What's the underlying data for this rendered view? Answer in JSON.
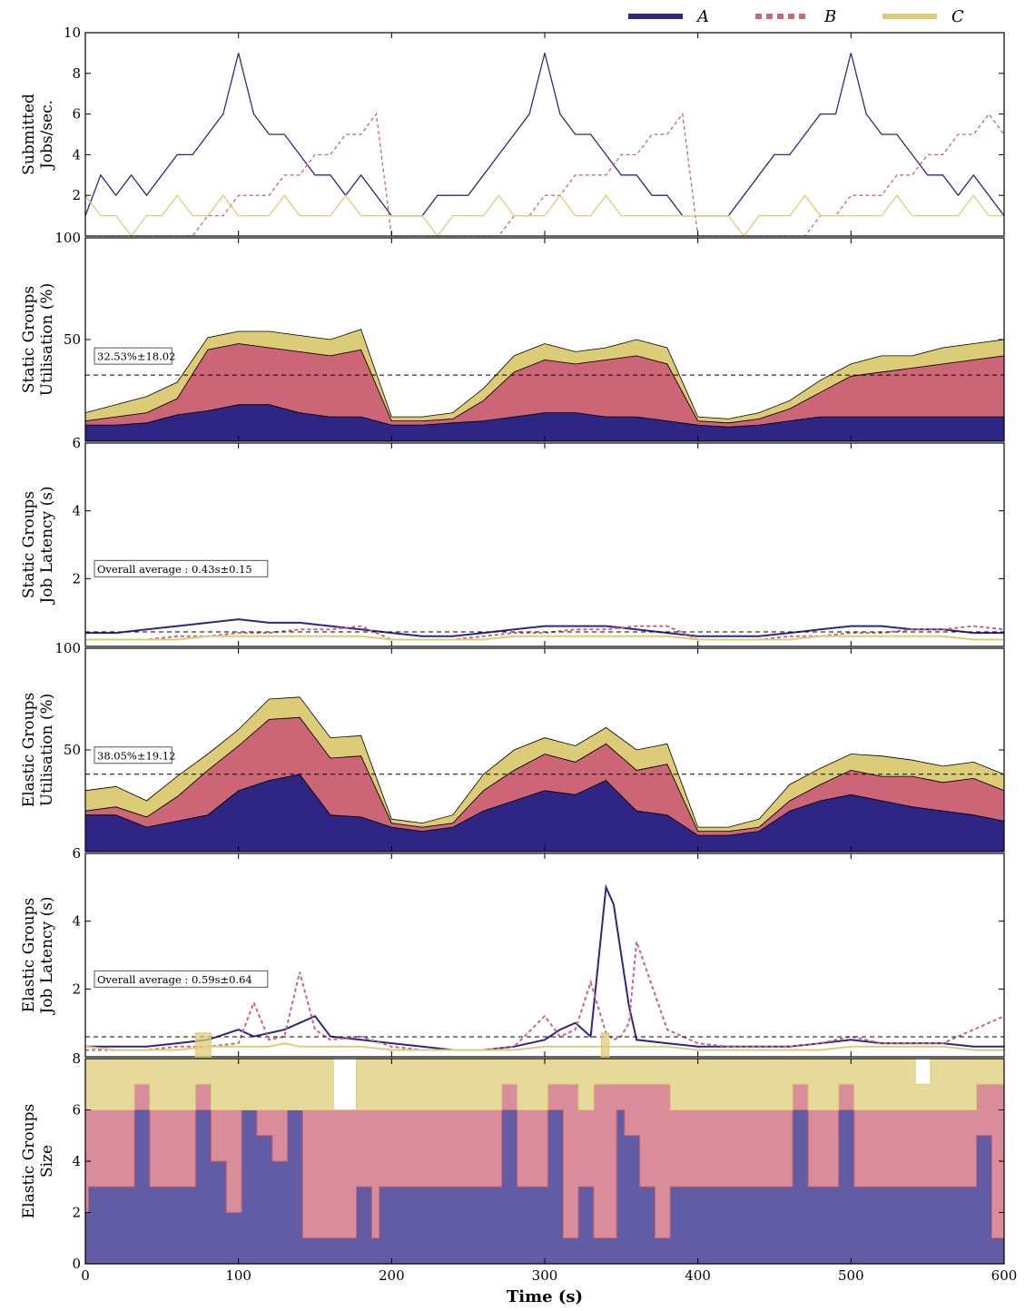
{
  "colors": {
    "A": "#2e2585",
    "B": "#cc6677",
    "C": "#ddcc77"
  },
  "legend": [
    {
      "key": "A",
      "label": "A",
      "dash": false
    },
    {
      "key": "B",
      "label": "B",
      "dash": true
    },
    {
      "key": "C",
      "label": "C",
      "dash": false
    }
  ],
  "x_axis": {
    "label": "Time (s)",
    "range": [
      0,
      600
    ],
    "ticks": [
      0,
      100,
      200,
      300,
      400,
      500,
      600
    ]
  },
  "chart_data": [
    {
      "id": "submitted",
      "type": "line",
      "ylabel": [
        "Submitted",
        "Jobs/sec."
      ],
      "ylim": [
        0,
        10
      ],
      "yticks": [
        2,
        4,
        6,
        8,
        10
      ],
      "x": [
        0,
        10,
        20,
        30,
        40,
        50,
        60,
        70,
        80,
        90,
        100,
        110,
        120,
        130,
        140,
        150,
        160,
        170,
        180,
        190,
        200,
        210,
        220,
        230,
        240,
        250,
        260,
        270,
        280,
        290,
        300,
        310,
        320,
        330,
        340,
        350,
        360,
        370,
        380,
        390,
        400,
        410,
        420,
        430,
        440,
        450,
        460,
        470,
        480,
        490,
        500,
        510,
        520,
        530,
        540,
        550,
        560,
        570,
        580,
        590,
        600
      ],
      "series": [
        {
          "name": "A",
          "values": [
            1,
            3,
            2,
            3,
            2,
            3,
            4,
            4,
            5,
            6,
            9,
            6,
            5,
            5,
            4,
            3,
            3,
            2,
            3,
            2,
            1,
            1,
            1,
            2,
            2,
            2,
            3,
            4,
            5,
            6,
            9,
            6,
            5,
            5,
            4,
            3,
            3,
            2,
            2,
            1,
            1,
            1,
            1,
            2,
            3,
            4,
            4,
            5,
            6,
            6,
            9,
            6,
            5,
            5,
            4,
            3,
            3,
            2,
            3,
            2,
            1
          ]
        },
        {
          "name": "B",
          "values": [
            0,
            0,
            0,
            0,
            0,
            0,
            0,
            0,
            1,
            1,
            2,
            2,
            2,
            3,
            3,
            4,
            4,
            5,
            5,
            6,
            0,
            0,
            0,
            0,
            0,
            0,
            0,
            0,
            1,
            1,
            2,
            2,
            3,
            3,
            3,
            4,
            4,
            5,
            5,
            6,
            0,
            0,
            0,
            0,
            0,
            0,
            0,
            0,
            1,
            1,
            2,
            2,
            2,
            3,
            3,
            4,
            4,
            5,
            5,
            6,
            5
          ]
        },
        {
          "name": "C",
          "values": [
            2,
            1,
            1,
            0,
            1,
            1,
            2,
            1,
            1,
            2,
            1,
            1,
            1,
            2,
            1,
            1,
            1,
            2,
            1,
            1,
            1,
            1,
            1,
            0,
            1,
            1,
            1,
            2,
            1,
            1,
            1,
            2,
            1,
            1,
            2,
            1,
            1,
            1,
            1,
            1,
            1,
            1,
            1,
            0,
            1,
            1,
            1,
            2,
            1,
            1,
            1,
            1,
            1,
            2,
            1,
            1,
            1,
            1,
            2,
            1,
            1
          ]
        }
      ]
    },
    {
      "id": "static_util",
      "type": "area",
      "stacked": true,
      "ylabel": [
        "Static Groups",
        "Utilisation (%)"
      ],
      "ylim": [
        0,
        100
      ],
      "yticks": [
        50,
        100
      ],
      "average_line": 32.53,
      "annotation": "32.53%±18.02",
      "x": [
        0,
        20,
        40,
        60,
        80,
        100,
        120,
        140,
        160,
        180,
        200,
        220,
        240,
        260,
        280,
        300,
        320,
        340,
        360,
        380,
        400,
        420,
        440,
        460,
        480,
        500,
        520,
        540,
        560,
        580,
        600
      ],
      "series": [
        {
          "name": "A",
          "values": [
            8,
            8,
            9,
            13,
            15,
            18,
            18,
            14,
            12,
            12,
            8,
            8,
            9,
            10,
            12,
            14,
            14,
            12,
            12,
            10,
            8,
            7,
            8,
            10,
            12,
            12,
            12,
            12,
            12,
            12,
            12
          ]
        },
        {
          "name": "B",
          "values": [
            2,
            4,
            5,
            8,
            30,
            30,
            28,
            30,
            30,
            33,
            2,
            2,
            2,
            10,
            22,
            26,
            24,
            28,
            30,
            28,
            2,
            2,
            3,
            6,
            12,
            20,
            22,
            24,
            26,
            28,
            30
          ]
        },
        {
          "name": "C",
          "values": [
            4,
            6,
            8,
            8,
            6,
            6,
            8,
            8,
            8,
            10,
            2,
            2,
            3,
            6,
            8,
            8,
            6,
            6,
            8,
            8,
            2,
            2,
            3,
            4,
            6,
            6,
            8,
            6,
            8,
            8,
            8
          ]
        }
      ]
    },
    {
      "id": "static_latency",
      "type": "line",
      "ylabel": [
        "Static Groups",
        "Job Latency (s)"
      ],
      "ylim": [
        0,
        6
      ],
      "yticks": [
        2,
        4,
        6
      ],
      "average_line": 0.43,
      "annotation": "Overall average : 0.43s±0.15",
      "x": [
        0,
        20,
        40,
        60,
        80,
        100,
        120,
        140,
        160,
        180,
        200,
        220,
        240,
        260,
        280,
        300,
        320,
        340,
        360,
        380,
        400,
        420,
        440,
        460,
        480,
        500,
        520,
        540,
        560,
        580,
        600
      ],
      "series": [
        {
          "name": "A",
          "values": [
            0.4,
            0.4,
            0.5,
            0.6,
            0.7,
            0.8,
            0.7,
            0.7,
            0.6,
            0.5,
            0.4,
            0.3,
            0.3,
            0.4,
            0.5,
            0.6,
            0.6,
            0.6,
            0.5,
            0.4,
            0.3,
            0.3,
            0.3,
            0.4,
            0.5,
            0.6,
            0.6,
            0.5,
            0.5,
            0.4,
            0.4
          ]
        },
        {
          "name": "B",
          "values": [
            0.2,
            0.2,
            0.2,
            0.3,
            0.3,
            0.4,
            0.4,
            0.5,
            0.5,
            0.6,
            0.2,
            0.2,
            0.2,
            0.3,
            0.4,
            0.4,
            0.5,
            0.5,
            0.6,
            0.6,
            0.2,
            0.2,
            0.2,
            0.3,
            0.3,
            0.4,
            0.4,
            0.5,
            0.5,
            0.6,
            0.5
          ]
        },
        {
          "name": "C",
          "values": [
            0.2,
            0.2,
            0.2,
            0.2,
            0.3,
            0.3,
            0.3,
            0.3,
            0.3,
            0.3,
            0.2,
            0.2,
            0.2,
            0.2,
            0.3,
            0.3,
            0.3,
            0.3,
            0.3,
            0.3,
            0.2,
            0.2,
            0.2,
            0.2,
            0.3,
            0.3,
            0.3,
            0.3,
            0.3,
            0.2,
            0.2
          ]
        }
      ]
    },
    {
      "id": "elastic_util",
      "type": "area",
      "stacked": true,
      "ylabel": [
        "Elastic Groups",
        "Utilisation (%)"
      ],
      "ylim": [
        0,
        100
      ],
      "yticks": [
        50,
        100
      ],
      "average_line": 38.05,
      "annotation": "38.05%±19.12",
      "x": [
        0,
        20,
        40,
        60,
        80,
        100,
        120,
        140,
        160,
        180,
        200,
        220,
        240,
        260,
        280,
        300,
        320,
        340,
        360,
        380,
        400,
        420,
        440,
        460,
        480,
        500,
        520,
        540,
        560,
        580,
        600
      ],
      "series": [
        {
          "name": "A",
          "values": [
            18,
            18,
            12,
            15,
            18,
            30,
            35,
            38,
            18,
            17,
            12,
            10,
            12,
            20,
            25,
            30,
            28,
            35,
            20,
            18,
            8,
            8,
            10,
            20,
            25,
            28,
            25,
            22,
            20,
            18,
            15
          ]
        },
        {
          "name": "B",
          "values": [
            2,
            4,
            5,
            12,
            22,
            22,
            30,
            28,
            28,
            30,
            2,
            2,
            2,
            10,
            15,
            18,
            16,
            18,
            20,
            25,
            2,
            2,
            2,
            5,
            8,
            12,
            12,
            15,
            14,
            18,
            15
          ]
        },
        {
          "name": "C",
          "values": [
            10,
            10,
            8,
            10,
            8,
            8,
            10,
            10,
            10,
            10,
            2,
            2,
            4,
            8,
            10,
            8,
            8,
            8,
            10,
            10,
            2,
            2,
            4,
            8,
            8,
            8,
            10,
            8,
            8,
            8,
            8
          ]
        }
      ]
    },
    {
      "id": "elastic_latency",
      "type": "line",
      "ylabel": [
        "Elastic Groups",
        "Job Latency (s)"
      ],
      "ylim": [
        0,
        6
      ],
      "yticks": [
        2,
        4,
        6
      ],
      "average_line": 0.59,
      "annotation": "Overall average : 0.59s±0.64",
      "x": [
        0,
        20,
        40,
        60,
        80,
        100,
        110,
        120,
        130,
        140,
        150,
        160,
        180,
        200,
        220,
        240,
        260,
        280,
        300,
        310,
        320,
        330,
        340,
        345,
        350,
        355,
        360,
        380,
        400,
        420,
        440,
        460,
        480,
        500,
        520,
        540,
        560,
        580,
        600
      ],
      "series": [
        {
          "name": "A",
          "values": [
            0.3,
            0.3,
            0.3,
            0.4,
            0.5,
            0.8,
            0.6,
            0.7,
            0.8,
            1.0,
            1.2,
            0.6,
            0.5,
            0.4,
            0.3,
            0.2,
            0.2,
            0.3,
            0.5,
            0.8,
            1.0,
            0.6,
            5.0,
            4.5,
            3.0,
            1.5,
            0.5,
            0.4,
            0.3,
            0.3,
            0.3,
            0.3,
            0.4,
            0.5,
            0.4,
            0.4,
            0.4,
            0.3,
            0.3
          ]
        },
        {
          "name": "B",
          "values": [
            0.2,
            0.2,
            0.2,
            0.3,
            0.3,
            0.4,
            1.6,
            0.5,
            0.6,
            2.5,
            0.8,
            0.5,
            0.6,
            0.3,
            0.2,
            0.2,
            0.2,
            0.3,
            1.2,
            0.6,
            0.8,
            2.2,
            0.7,
            0.5,
            0.6,
            1.0,
            3.4,
            0.8,
            0.4,
            0.3,
            0.3,
            0.3,
            0.4,
            0.6,
            0.4,
            0.4,
            0.4,
            0.8,
            1.2
          ]
        },
        {
          "name": "C",
          "values": [
            0.3,
            0.2,
            0.2,
            0.2,
            0.3,
            0.3,
            0.3,
            0.3,
            0.4,
            0.3,
            0.3,
            0.3,
            0.3,
            0.2,
            0.2,
            0.2,
            0.2,
            0.2,
            0.3,
            0.3,
            0.3,
            0.3,
            0.3,
            0.3,
            0.3,
            0.3,
            0.3,
            0.3,
            0.2,
            0.2,
            0.2,
            0.2,
            0.2,
            0.3,
            0.3,
            0.3,
            0.3,
            0.2,
            0.2
          ]
        }
      ]
    },
    {
      "id": "elastic_size",
      "type": "area",
      "stacked": true,
      "step": true,
      "ylabel": [
        "Elastic Groups",
        "Size"
      ],
      "ylim": [
        0,
        8
      ],
      "yticks": [
        0,
        2,
        4,
        6,
        8
      ],
      "x": [
        0,
        2,
        32,
        42,
        72,
        82,
        92,
        102,
        112,
        122,
        132,
        142,
        152,
        162,
        177,
        187,
        192,
        202,
        272,
        282,
        302,
        312,
        322,
        332,
        337,
        342,
        347,
        352,
        362,
        372,
        382,
        392,
        402,
        462,
        472,
        492,
        502,
        542,
        552,
        562,
        582,
        592,
        600
      ],
      "series": [
        {
          "name": "A",
          "values": [
            2,
            3,
            6,
            3,
            6,
            4,
            2,
            6,
            5,
            4,
            6,
            1,
            1,
            1,
            3,
            1,
            3,
            3,
            6,
            3,
            6,
            1,
            3,
            1,
            1,
            1,
            6,
            5,
            3,
            1,
            3,
            3,
            3,
            6,
            3,
            6,
            3,
            3,
            3,
            3,
            5,
            1,
            1
          ]
        },
        {
          "name": "B",
          "values": [
            4,
            3,
            1,
            3,
            1,
            2,
            4,
            0,
            1,
            2,
            0,
            5,
            5,
            5,
            3,
            5,
            3,
            3,
            1,
            3,
            1,
            6,
            3,
            6,
            6,
            6,
            1,
            2,
            4,
            6,
            3,
            3,
            3,
            1,
            3,
            1,
            3,
            3,
            3,
            3,
            2,
            6,
            6
          ]
        },
        {
          "name": "C",
          "values": [
            2,
            2,
            1,
            2,
            2,
            2,
            2,
            2,
            2,
            2,
            2,
            2,
            2,
            0,
            2,
            2,
            2,
            2,
            1,
            2,
            1,
            1,
            2,
            1,
            2,
            1,
            1,
            1,
            1,
            1,
            2,
            2,
            2,
            1,
            2,
            1,
            2,
            1,
            2,
            2,
            1,
            1,
            1
          ]
        }
      ]
    }
  ]
}
